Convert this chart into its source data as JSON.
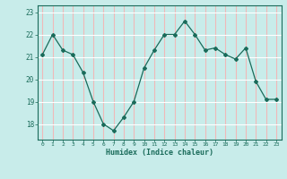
{
  "x": [
    0,
    1,
    2,
    3,
    4,
    5,
    6,
    7,
    8,
    9,
    10,
    11,
    12,
    13,
    14,
    15,
    16,
    17,
    18,
    19,
    20,
    21,
    22,
    23
  ],
  "y": [
    21.1,
    22.0,
    21.3,
    21.1,
    20.3,
    19.0,
    18.0,
    17.7,
    18.3,
    19.0,
    20.5,
    21.3,
    22.0,
    22.0,
    22.6,
    22.0,
    21.3,
    21.4,
    21.1,
    20.9,
    21.4,
    19.9,
    19.1,
    19.1
  ],
  "line_color": "#1a6b5a",
  "marker": "D",
  "marker_size": 2.0,
  "bg_color": "#c8ecea",
  "hgrid_color": "#ffffff",
  "vgrid_color": "#f0b8b8",
  "xlabel": "Humidex (Indice chaleur)",
  "tick_color": "#1a6b5a",
  "label_color": "#1a6b5a",
  "ylim": [
    17.3,
    23.3
  ],
  "xlim": [
    -0.5,
    23.5
  ],
  "yticks": [
    18,
    19,
    20,
    21,
    22,
    23
  ],
  "xticks": [
    0,
    1,
    2,
    3,
    4,
    5,
    6,
    7,
    8,
    9,
    10,
    11,
    12,
    13,
    14,
    15,
    16,
    17,
    18,
    19,
    20,
    21,
    22,
    23
  ]
}
